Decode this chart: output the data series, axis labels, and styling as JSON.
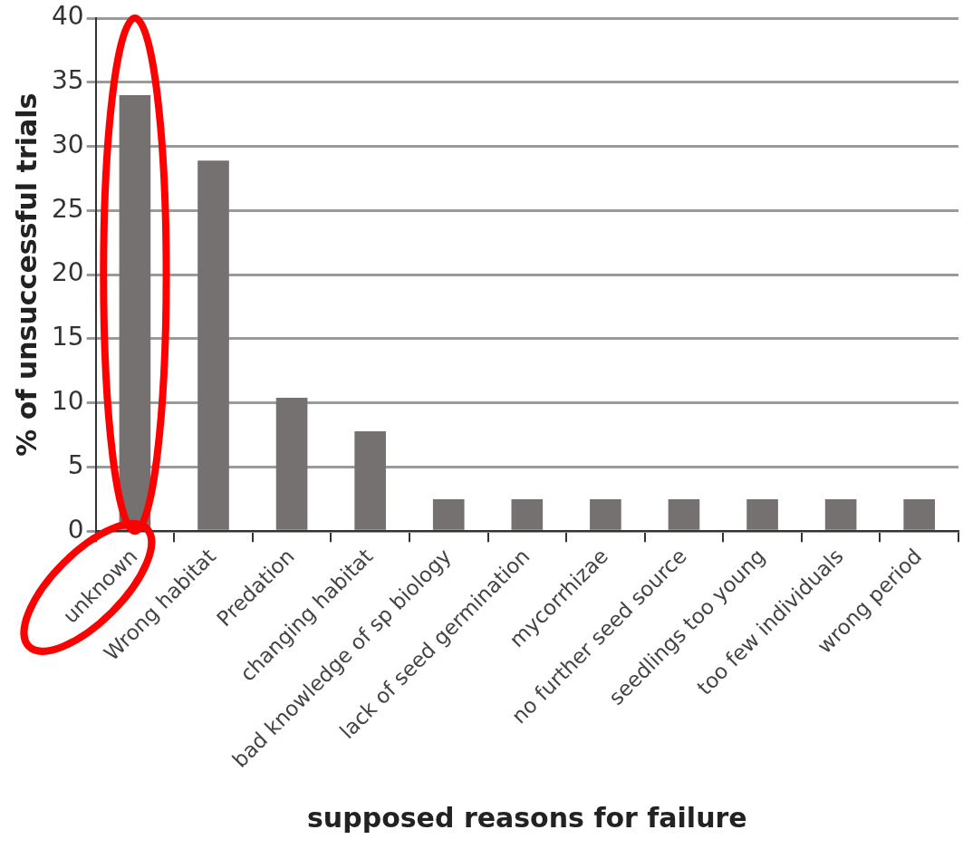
{
  "chart_data": {
    "type": "bar",
    "xlabel": "supposed reasons for failure",
    "ylabel": "% of unsuccessful trials",
    "categories": [
      "unknown",
      "Wrong habitat",
      "Predation",
      "changing habitat",
      "bad knowledge of sp biology",
      "lack of seed germination",
      "mycorrhizae",
      "no further seed source",
      "seedlings too young",
      "too few individuals",
      "wrong period"
    ],
    "values": [
      34.0,
      28.9,
      10.4,
      7.8,
      2.5,
      2.5,
      2.5,
      2.5,
      2.5,
      2.5,
      2.5
    ],
    "color": "#767171",
    "ylim": [
      0,
      40
    ],
    "yticks": [
      0,
      5,
      10,
      15,
      20,
      25,
      30,
      35,
      40
    ],
    "grid": "y",
    "legend": false
  }
}
